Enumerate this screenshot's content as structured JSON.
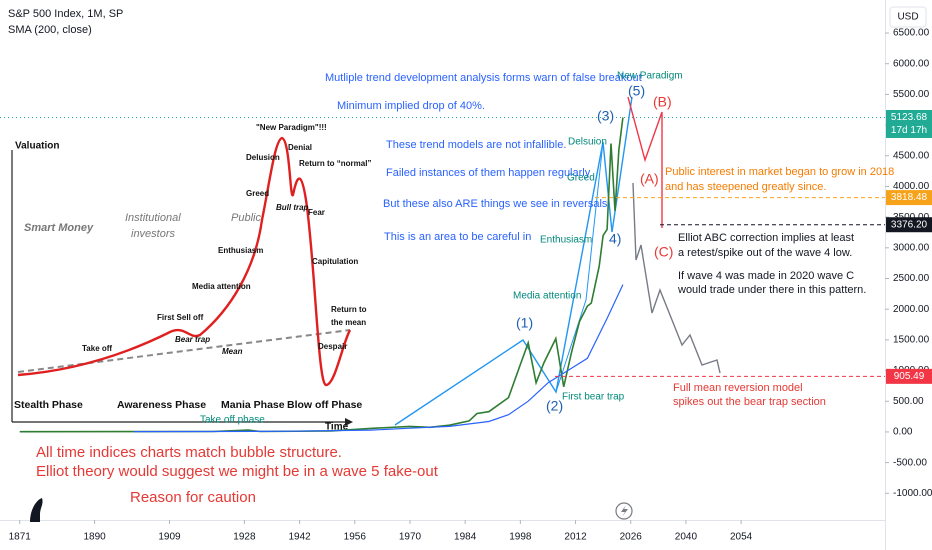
{
  "chart_data": {
    "type": "line",
    "currency": "USD",
    "xlim": [
      1866,
      2090.5
    ],
    "xticks": [
      1871,
      1890,
      1909,
      1928,
      1942,
      1956,
      1970,
      1984,
      1998,
      2012,
      2026,
      2040,
      2054
    ],
    "ylim": [
      -1435,
      7038
    ],
    "yticks": [
      {
        "value": 6500,
        "label": "6500.00"
      },
      {
        "value": 6000,
        "label": "6000.00"
      },
      {
        "value": 5500,
        "label": "5500.00"
      },
      {
        "value": 5000,
        "label": "5000.00"
      },
      {
        "value": 4500,
        "label": "4500.00"
      },
      {
        "value": 4000,
        "label": "4000.00"
      },
      {
        "value": 3500,
        "label": "3500.00"
      },
      {
        "value": 3000,
        "label": "3000.00"
      },
      {
        "value": 2500,
        "label": "2500.00"
      },
      {
        "value": 2000,
        "label": "2000.00"
      },
      {
        "value": 1500,
        "label": "1500.00"
      },
      {
        "value": 1000,
        "label": "1000.00"
      },
      {
        "value": 500,
        "label": "500.00"
      },
      {
        "value": 0,
        "label": "0.00"
      },
      {
        "value": -500,
        "label": "-500.00"
      },
      {
        "value": -1000,
        "label": "-1000.00"
      }
    ],
    "grid": false,
    "series": [
      {
        "name": "S&P 500 Index, 1M, SP",
        "color": "#2e7d32",
        "x": [
          1871,
          1900,
          1920,
          1929,
          1932,
          1950,
          1960,
          1970,
          1975,
          1980,
          1985,
          1987,
          1990,
          1995,
          1998,
          2000,
          2002,
          2004,
          2007,
          2009,
          2011,
          2013,
          2015,
          2016,
          2018,
          2019,
          2020,
          2021,
          2022,
          2023,
          2024
        ],
        "values": [
          4.4,
          6.2,
          7,
          30,
          7,
          17,
          58,
          90,
          75,
          110,
          180,
          300,
          330,
          560,
          1100,
          1450,
          800,
          1130,
          1520,
          735,
          1300,
          1800,
          2050,
          2100,
          2700,
          3200,
          3300,
          4700,
          3600,
          4600,
          5123.68
        ]
      },
      {
        "name": "SMA (200, close)",
        "color": "#2962ff",
        "x": [
          1900,
          1920,
          1940,
          1960,
          1970,
          1980,
          1990,
          1995,
          2000,
          2005,
          2010,
          2015,
          2020,
          2024
        ],
        "values": [
          5,
          7,
          12,
          30,
          60,
          90,
          170,
          280,
          500,
          800,
          1000,
          1200,
          1850,
          2400
        ]
      }
    ],
    "price_tags": [
      {
        "value": 5123.68,
        "label": "5123.68",
        "color": "#22ab94",
        "countdown": "17d 17h"
      },
      {
        "value": 3818.48,
        "label": "3818.48",
        "color": "#f7a21b"
      },
      {
        "value": 3376.2,
        "label": "3376.20",
        "color": "#131722"
      },
      {
        "value": 905.49,
        "label": "905.49",
        "color": "#f23645"
      }
    ],
    "annotations": [
      "Mutliple trend development analysis forms warn of false breakout",
      "Minimum implied drop of 40%.",
      "These trend models are not infallible.",
      "Failed instances of them happen regularly",
      "But these also ARE things we see in reversals",
      "This is an area to be careful in",
      "Public interest in market began to grow in 2018",
      "and has steepened greatly since.",
      "Elliot ABC correction implies at least",
      "a retest/spike out of the wave 4 low.",
      "If wave 4 was made in 2020 wave C",
      "would trade under there in this pattern.",
      "Full mean reversion model",
      "spikes out the bear trap section",
      "All time indices charts match bubble structure.",
      "Elliot theory would suggest we might be in a wave 5 fake-out",
      "Reason for caution",
      "Take off phase",
      "First bear trap",
      "Media attention",
      "Enthusiasm",
      "Greed",
      "Delsuion",
      "New Paradigm",
      "(1)",
      "(2)",
      "(3)",
      "4)",
      "(5)",
      "(A)",
      "(B)",
      "(C)"
    ],
    "inset": {
      "labels": [
        "Valuation",
        "Time",
        "Smart Money",
        "Institutional",
        "investors",
        "Public",
        "\"New Paradigm\"!!!",
        "Delusion",
        "Denial",
        "Return to “normal”",
        "Greed",
        "Bull trap",
        "Fear",
        "Enthusiasm",
        "Capitulation",
        "Media attention",
        "First Sell off",
        "Bear trap",
        "Take off",
        "Mean",
        "Return to",
        "the mean",
        "Despair"
      ],
      "phases": [
        "Stealth Phase",
        "Awareness Phase",
        "Mania Phase",
        "Blow off Phase"
      ]
    }
  }
}
